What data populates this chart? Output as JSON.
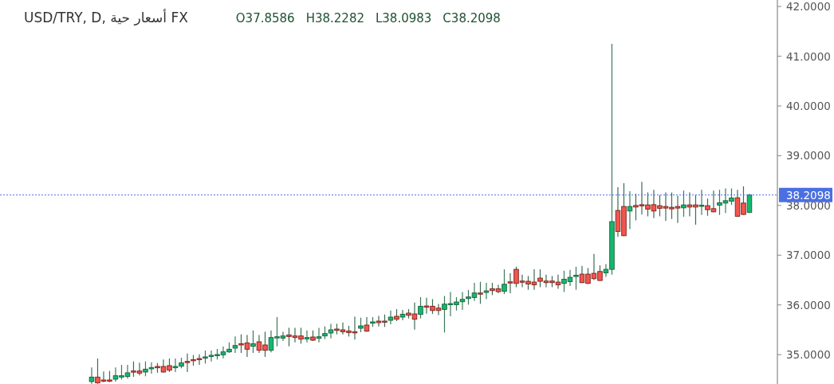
{
  "chart_data": {
    "type": "candlestick",
    "title": "USD/TRY, D, أسعار حية FX",
    "annotations": [
      "O37.8586",
      "H38.2282",
      "L38.0983",
      "C38.2098"
    ],
    "categories": [
      null,
      null,
      null,
      null,
      null,
      null,
      null,
      null,
      null,
      null,
      null,
      null,
      null,
      null,
      null,
      null,
      null,
      null,
      null,
      null,
      null,
      null,
      null,
      null,
      null,
      null,
      null,
      null,
      null,
      null,
      null,
      null,
      null,
      null,
      null,
      null,
      null,
      null,
      null,
      null,
      null,
      null,
      null,
      null,
      null,
      null,
      null,
      null,
      null,
      null,
      null,
      null,
      null,
      null,
      null,
      null,
      null,
      null,
      null,
      null,
      null,
      null,
      null,
      null,
      null,
      null,
      null,
      null,
      null,
      null,
      null,
      null,
      null,
      null,
      null,
      null,
      null,
      null,
      null,
      null,
      null,
      null,
      null,
      null,
      null,
      null,
      null,
      null,
      null,
      null,
      null,
      null,
      null,
      null,
      null,
      null,
      null,
      null,
      null,
      null,
      null,
      null,
      null,
      null,
      null,
      null,
      null,
      null,
      null,
      null,
      null
    ],
    "ohlc": [
      [
        34.459,
        34.741,
        34.416,
        34.549
      ],
      [
        34.549,
        34.923,
        34.416,
        34.432
      ],
      [
        34.491,
        34.661,
        34.448,
        34.469
      ],
      [
        34.491,
        34.672,
        34.448,
        34.469
      ],
      [
        34.507,
        34.741,
        34.459,
        34.576
      ],
      [
        34.549,
        34.795,
        34.501,
        34.576
      ],
      [
        34.56,
        34.795,
        34.517,
        34.635
      ],
      [
        34.672,
        34.864,
        34.555,
        34.651
      ],
      [
        34.672,
        34.837,
        34.581,
        34.629
      ],
      [
        34.651,
        34.864,
        34.565,
        34.709
      ],
      [
        34.715,
        34.848,
        34.619,
        34.741
      ],
      [
        34.763,
        34.832,
        34.635,
        34.736
      ],
      [
        34.763,
        34.901,
        34.64,
        34.651
      ],
      [
        34.779,
        34.923,
        34.651,
        34.688
      ],
      [
        34.736,
        34.923,
        34.651,
        34.763
      ],
      [
        34.768,
        34.939,
        34.725,
        34.837
      ],
      [
        34.864,
        35.024,
        34.651,
        34.843
      ],
      [
        34.901,
        34.992,
        34.779,
        34.88
      ],
      [
        34.923,
        35.008,
        34.795,
        34.901
      ],
      [
        34.933,
        35.083,
        34.821,
        34.955
      ],
      [
        34.965,
        35.083,
        34.864,
        34.987
      ],
      [
        34.981,
        35.115,
        34.901,
        35.003
      ],
      [
        34.997,
        35.163,
        34.928,
        35.056
      ],
      [
        35.056,
        35.248,
        35.035,
        35.109
      ],
      [
        35.131,
        35.365,
        35.035,
        35.184
      ],
      [
        35.221,
        35.408,
        35.035,
        35.195
      ],
      [
        35.237,
        35.397,
        34.955,
        35.109
      ],
      [
        35.168,
        35.488,
        35.035,
        35.221
      ],
      [
        35.259,
        35.397,
        35.035,
        35.088
      ],
      [
        35.195,
        35.461,
        34.955,
        35.088
      ],
      [
        35.088,
        35.488,
        35.045,
        35.344
      ],
      [
        35.344,
        35.755,
        35.168,
        35.36
      ],
      [
        35.333,
        35.461,
        35.275,
        35.376
      ],
      [
        35.397,
        35.541,
        35.168,
        35.365
      ],
      [
        35.376,
        35.541,
        35.248,
        35.344
      ],
      [
        35.376,
        35.541,
        35.221,
        35.312
      ],
      [
        35.317,
        35.488,
        35.248,
        35.344
      ],
      [
        35.355,
        35.488,
        35.275,
        35.291
      ],
      [
        35.328,
        35.541,
        35.248,
        35.36
      ],
      [
        35.376,
        35.568,
        35.312,
        35.424
      ],
      [
        35.435,
        35.621,
        35.328,
        35.499
      ],
      [
        35.515,
        35.621,
        35.408,
        35.488
      ],
      [
        35.499,
        35.648,
        35.408,
        35.461
      ],
      [
        35.477,
        35.579,
        35.365,
        35.445
      ],
      [
        35.461,
        35.765,
        35.301,
        35.445
      ],
      [
        35.531,
        35.744,
        35.451,
        35.579
      ],
      [
        35.595,
        35.755,
        35.461,
        35.472
      ],
      [
        35.632,
        35.755,
        35.557,
        35.659
      ],
      [
        35.675,
        35.781,
        35.568,
        35.643
      ],
      [
        35.675,
        35.808,
        35.557,
        35.664
      ],
      [
        35.691,
        35.888,
        35.611,
        35.755
      ],
      [
        35.771,
        35.915,
        35.675,
        35.712
      ],
      [
        35.755,
        35.899,
        35.691,
        35.813
      ],
      [
        35.835,
        35.915,
        35.728,
        35.792
      ],
      [
        35.819,
        36.048,
        35.504,
        35.712
      ],
      [
        35.808,
        36.155,
        35.728,
        35.973
      ],
      [
        35.979,
        36.144,
        35.824,
        35.952
      ],
      [
        35.973,
        36.117,
        35.819,
        35.888
      ],
      [
        35.936,
        36.021,
        35.797,
        35.888
      ],
      [
        35.909,
        36.181,
        35.445,
        36.016
      ],
      [
        36.005,
        36.261,
        35.771,
        36.027
      ],
      [
        36.005,
        36.155,
        35.888,
        36.059
      ],
      [
        36.064,
        36.261,
        35.899,
        36.112
      ],
      [
        36.128,
        36.299,
        36.005,
        36.16
      ],
      [
        36.149,
        36.443,
        36.08,
        36.24
      ],
      [
        36.24,
        36.464,
        36.021,
        36.224
      ],
      [
        36.251,
        36.443,
        36.117,
        36.283
      ],
      [
        36.325,
        36.443,
        36.197,
        36.288
      ],
      [
        36.325,
        36.405,
        36.235,
        36.267
      ],
      [
        36.272,
        36.715,
        36.219,
        36.416
      ],
      [
        36.464,
        36.635,
        36.235,
        36.443
      ],
      [
        36.715,
        36.768,
        36.357,
        36.432
      ],
      [
        36.48,
        36.608,
        36.357,
        36.459
      ],
      [
        36.475,
        36.581,
        36.304,
        36.421
      ],
      [
        36.459,
        36.715,
        36.304,
        36.405
      ],
      [
        36.539,
        36.715,
        36.357,
        36.475
      ],
      [
        36.48,
        36.608,
        36.357,
        36.448
      ],
      [
        36.48,
        36.581,
        36.357,
        36.448
      ],
      [
        36.459,
        36.608,
        36.325,
        36.405
      ],
      [
        36.432,
        36.688,
        36.261,
        36.517
      ],
      [
        36.469,
        36.704,
        36.379,
        36.555
      ],
      [
        36.571,
        36.768,
        36.304,
        36.597
      ],
      [
        36.619,
        36.784,
        36.44,
        36.448
      ],
      [
        36.619,
        36.741,
        36.421,
        36.432
      ],
      [
        36.635,
        37.024,
        36.501,
        36.528
      ],
      [
        36.672,
        36.795,
        36.485,
        36.491
      ],
      [
        36.645,
        36.821,
        36.565,
        36.715
      ],
      [
        36.715,
        41.248,
        36.608,
        37.675
      ],
      [
        37.899,
        38.368,
        37.371,
        37.477
      ],
      [
        37.979,
        38.448,
        37.381,
        37.392
      ],
      [
        37.888,
        38.288,
        37.525,
        37.979
      ],
      [
        38.0,
        38.235,
        37.701,
        37.968
      ],
      [
        38.016,
        38.475,
        37.819,
        37.989
      ],
      [
        38.011,
        38.261,
        37.781,
        37.925
      ],
      [
        38.016,
        38.315,
        37.744,
        37.888
      ],
      [
        37.995,
        38.208,
        37.781,
        37.941
      ],
      [
        37.979,
        38.261,
        37.691,
        37.947
      ],
      [
        37.963,
        38.261,
        37.728,
        37.931
      ],
      [
        37.979,
        38.192,
        37.648,
        37.947
      ],
      [
        37.952,
        38.299,
        37.771,
        38.011
      ],
      [
        38.011,
        38.261,
        37.781,
        37.968
      ],
      [
        38.011,
        38.208,
        37.611,
        37.968
      ],
      [
        37.984,
        38.315,
        37.808,
        38.005
      ],
      [
        37.995,
        38.139,
        37.792,
        37.915
      ],
      [
        37.936,
        38.299,
        37.861,
        37.872
      ],
      [
        38.005,
        38.315,
        37.808,
        38.053
      ],
      [
        38.048,
        38.341,
        37.845,
        38.096
      ],
      [
        38.085,
        38.341,
        38.011,
        38.149
      ],
      [
        38.155,
        38.315,
        37.78,
        37.781
      ],
      [
        38.048,
        38.384,
        37.81,
        37.819
      ],
      [
        37.8586,
        38.2282,
        37.85,
        38.2098
      ]
    ],
    "colors": [
      "#14b86e",
      "#f2564c",
      "#f2564c",
      "#f2564c",
      "#14b86e",
      "#14b86e",
      "#14b86e",
      "#f2564c",
      "#f2564c",
      "#14b86e",
      "#14b86e",
      "#f2564c",
      "#f2564c",
      "#f2564c",
      "#14b86e",
      "#14b86e",
      "#f2564c",
      "#f2564c",
      "#f2564c",
      "#14b86e",
      "#14b86e",
      "#14b86e",
      "#14b86e",
      "#14b86e",
      "#14b86e",
      "#f2564c",
      "#f2564c",
      "#14b86e",
      "#f2564c",
      "#f2564c",
      "#14b86e",
      "#14b86e",
      "#14b86e",
      "#f2564c",
      "#f2564c",
      "#f2564c",
      "#14b86e",
      "#f2564c",
      "#14b86e",
      "#14b86e",
      "#14b86e",
      "#f2564c",
      "#f2564c",
      "#f2564c",
      "#f2564c",
      "#14b86e",
      "#f2564c",
      "#14b86e",
      "#f2564c",
      "#f2564c",
      "#14b86e",
      "#f2564c",
      "#14b86e",
      "#f2564c",
      "#f2564c",
      "#14b86e",
      "#f2564c",
      "#f2564c",
      "#f2564c",
      "#14b86e",
      "#14b86e",
      "#14b86e",
      "#14b86e",
      "#14b86e",
      "#14b86e",
      "#f2564c",
      "#14b86e",
      "#f2564c",
      "#f2564c",
      "#14b86e",
      "#f2564c",
      "#f2564c",
      "#f2564c",
      "#f2564c",
      "#f2564c",
      "#f2564c",
      "#f2564c",
      "#f2564c",
      "#f2564c",
      "#14b86e",
      "#14b86e",
      "#14b86e",
      "#f2564c",
      "#f2564c",
      "#f2564c",
      "#f2564c",
      "#14b86e",
      "#14b86e",
      "#f2564c",
      "#f2564c",
      "#14b86e",
      "#f2564c",
      "#f2564c",
      "#f2564c",
      "#f2564c",
      "#f2564c",
      "#f2564c",
      "#f2564c",
      "#f2564c",
      "#14b86e",
      "#f2564c",
      "#f2564c",
      "#14b86e",
      "#f2564c",
      "#f2564c",
      "#14b86e",
      "#14b86e",
      "#14b86e",
      "#f2564c",
      "#f2564c",
      "#14b86e"
    ],
    "ylim": [
      34.41,
      42.13
    ],
    "yticks": [
      {
        "value": 35,
        "label": "35.0000"
      },
      {
        "value": 36,
        "label": "36.0000"
      },
      {
        "value": 37,
        "label": "37.0000"
      },
      {
        "value": 38,
        "label": "38.0000"
      },
      {
        "value": 39,
        "label": "39.0000"
      },
      {
        "value": 40,
        "label": "40.0000"
      },
      {
        "value": 41,
        "label": "41.0000"
      },
      {
        "value": 42,
        "label": "42.0000"
      }
    ],
    "ref_lines": [
      {
        "axis": "y",
        "value": 38.2098,
        "label": "38.2098",
        "color": "#4a6fe3",
        "line_style": "dotted"
      }
    ],
    "grid": false
  }
}
